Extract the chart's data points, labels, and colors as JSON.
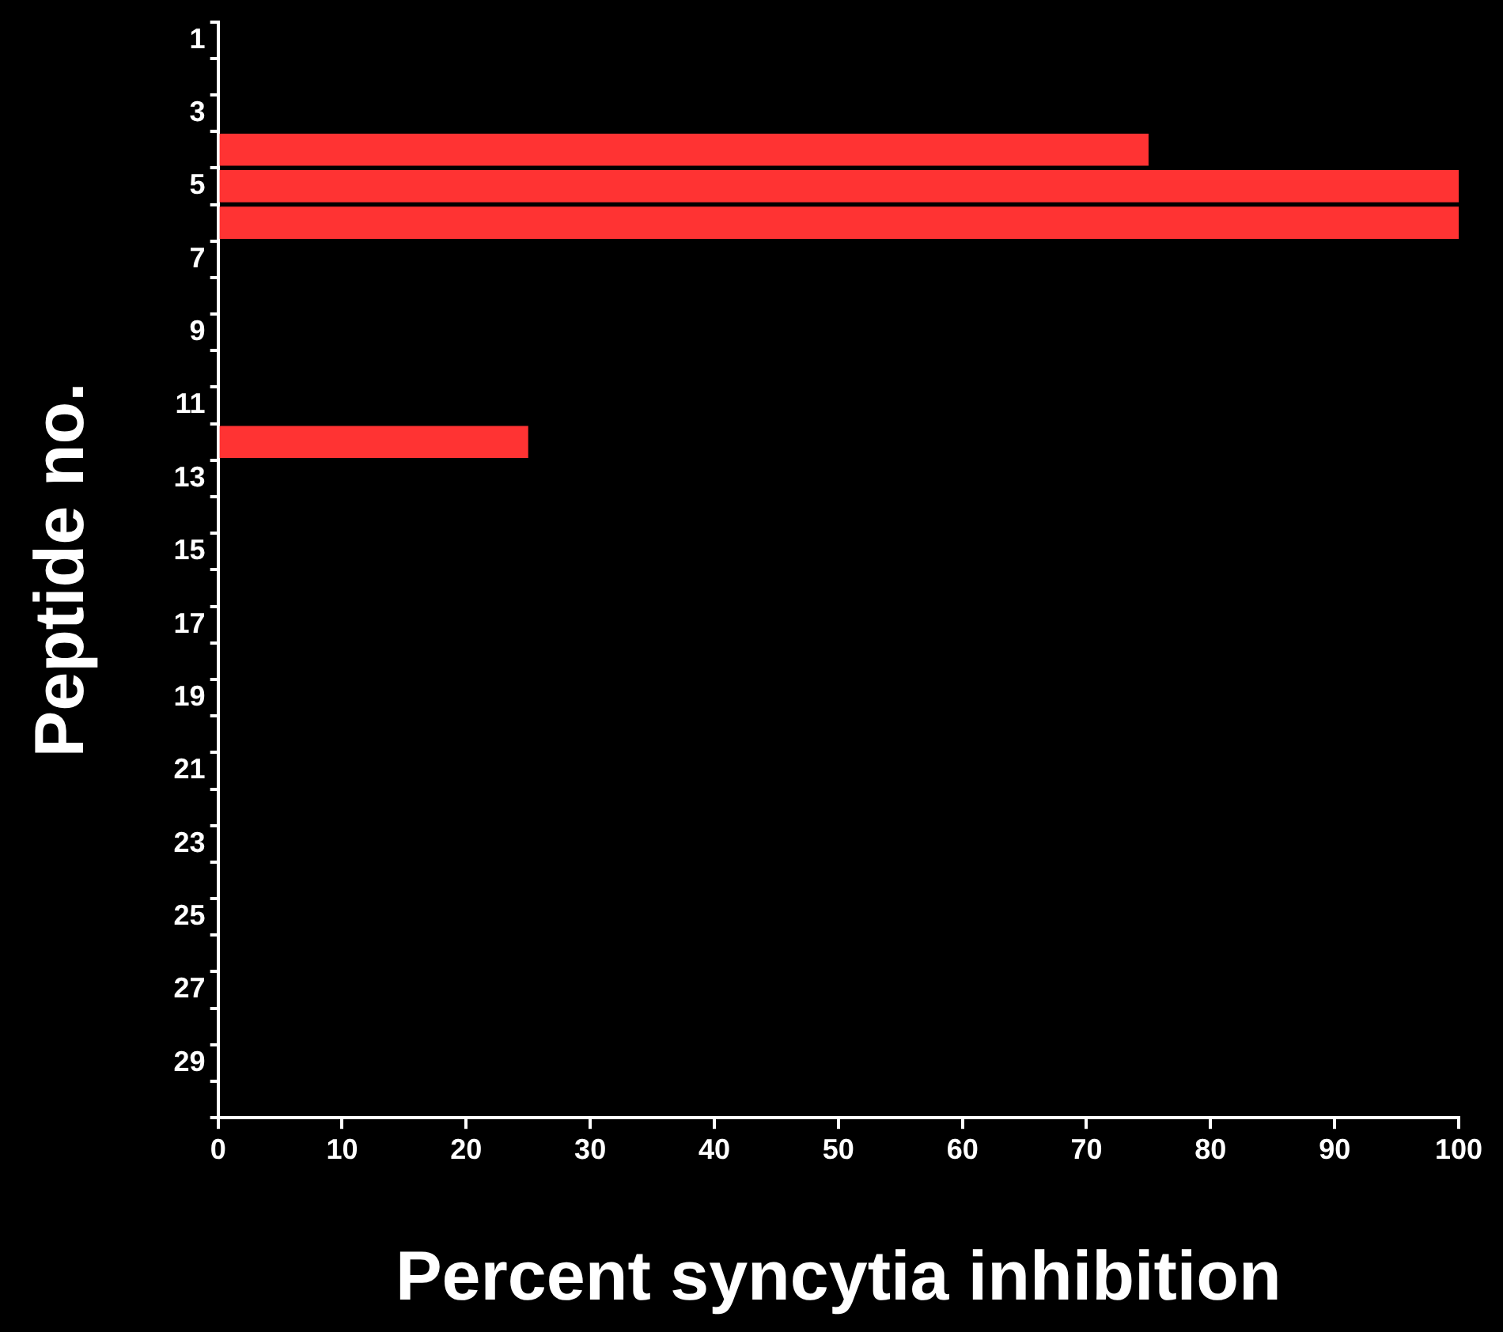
{
  "chart_data": {
    "type": "bar",
    "orientation": "horizontal",
    "xlabel": "Percent syncytia inhibition",
    "ylabel": "Peptide no.",
    "categories": [
      "1",
      null,
      "3",
      null,
      "5",
      null,
      "7",
      null,
      "9",
      null,
      "11",
      null,
      "13",
      null,
      "15",
      null,
      "17",
      null,
      "19",
      null,
      "21",
      null,
      "23",
      null,
      "25",
      null,
      "27",
      null,
      "29",
      null
    ],
    "values": [
      null,
      null,
      null,
      75,
      100,
      100,
      null,
      null,
      null,
      null,
      null,
      25,
      null,
      null,
      null,
      null,
      null,
      null,
      null,
      null,
      null,
      null,
      null,
      null,
      null,
      null,
      null,
      null,
      null,
      null
    ],
    "color": "#ff3333",
    "xlim": [
      0,
      100
    ],
    "xticks": [
      0,
      10,
      20,
      30,
      40,
      50,
      60,
      70,
      80,
      90,
      100
    ],
    "grid": false,
    "legend": false
  }
}
